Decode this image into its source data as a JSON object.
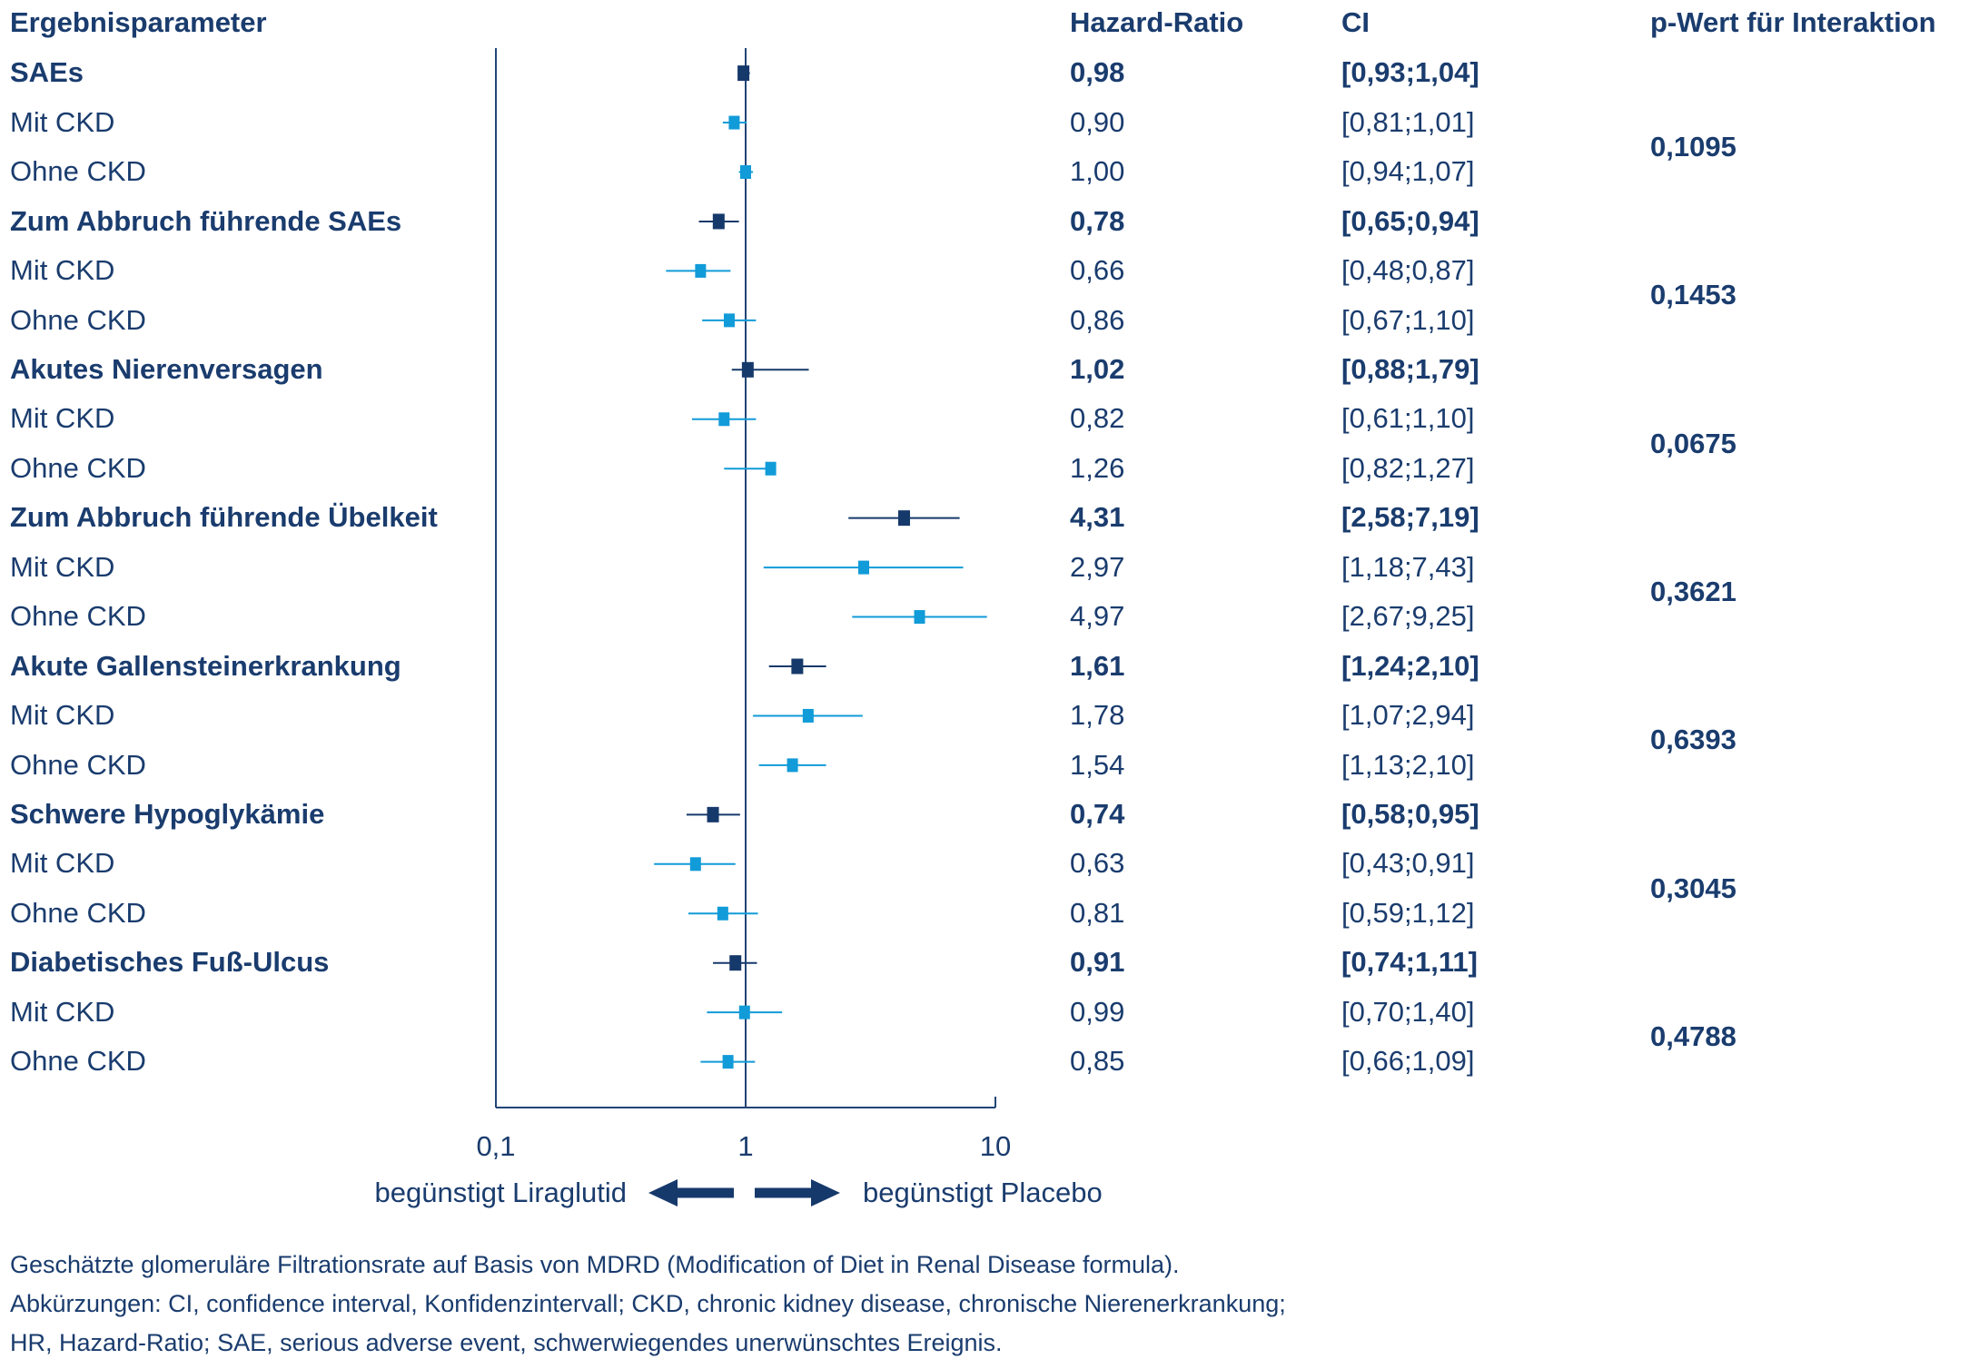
{
  "chart_data": {
    "type": "scatter",
    "x_scale": "log",
    "error_bars": true,
    "xlim": [
      0.1,
      10
    ],
    "x_ticks": [
      {
        "value": 0.1,
        "label": "0,1"
      },
      {
        "value": 1,
        "label": "1"
      },
      {
        "value": 10,
        "label": "10"
      }
    ],
    "reference_line": 1,
    "grid": false,
    "columns": {
      "parameter": "Ergebnisparameter",
      "hazard_ratio": "Hazard-Ratio",
      "ci": "CI",
      "p_interaction": "p-Wert für Interaktion"
    },
    "direction_labels": {
      "left": "begünstigt Liraglutid",
      "right": "begünstigt Placebo"
    },
    "colors": {
      "text": "#1a3c6e",
      "overall": "#16396b",
      "subgroup": "#119bd8",
      "axis": "#214575"
    },
    "groups": [
      {
        "p_interaction": "0,1095",
        "rows": [
          {
            "label": "SAEs",
            "hr": 0.98,
            "ci": [
              0.93,
              1.04
            ],
            "hr_text": "0,98",
            "ci_text": "[0,93;1,04]"
          },
          {
            "label": "Mit CKD",
            "hr": 0.9,
            "ci": [
              0.81,
              1.01
            ],
            "hr_text": "0,90",
            "ci_text": "[0,81;1,01]"
          },
          {
            "label": "Ohne CKD",
            "hr": 1.0,
            "ci": [
              0.94,
              1.07
            ],
            "hr_text": "1,00",
            "ci_text": "[0,94;1,07]"
          }
        ]
      },
      {
        "p_interaction": "0,1453",
        "rows": [
          {
            "label": "Zum Abbruch führende SAEs",
            "hr": 0.78,
            "ci": [
              0.65,
              0.94
            ],
            "hr_text": "0,78",
            "ci_text": "[0,65;0,94]"
          },
          {
            "label": "Mit CKD",
            "hr": 0.66,
            "ci": [
              0.48,
              0.87
            ],
            "hr_text": "0,66",
            "ci_text": "[0,48;0,87]"
          },
          {
            "label": "Ohne CKD",
            "hr": 0.86,
            "ci": [
              0.67,
              1.1
            ],
            "hr_text": "0,86",
            "ci_text": "[0,67;1,10]"
          }
        ]
      },
      {
        "p_interaction": "0,0675",
        "rows": [
          {
            "label": "Akutes Nierenversagen",
            "hr": 1.02,
            "ci": [
              0.88,
              1.79
            ],
            "hr_text": "1,02",
            "ci_text": "[0,88;1,79]"
          },
          {
            "label": "Mit CKD",
            "hr": 0.82,
            "ci": [
              0.61,
              1.1
            ],
            "hr_text": "0,82",
            "ci_text": "[0,61;1,10]"
          },
          {
            "label": "Ohne CKD",
            "hr": 1.26,
            "ci": [
              0.82,
              1.27
            ],
            "hr_text": "1,26",
            "ci_text": "[0,82;1,27]"
          }
        ]
      },
      {
        "p_interaction": "0,3621",
        "rows": [
          {
            "label": "Zum Abbruch führende Übelkeit",
            "hr": 4.31,
            "ci": [
              2.58,
              7.19
            ],
            "hr_text": "4,31",
            "ci_text": "[2,58;7,19]"
          },
          {
            "label": "Mit CKD",
            "hr": 2.97,
            "ci": [
              1.18,
              7.43
            ],
            "hr_text": "2,97",
            "ci_text": "[1,18;7,43]"
          },
          {
            "label": "Ohne CKD",
            "hr": 4.97,
            "ci": [
              2.67,
              9.25
            ],
            "hr_text": "4,97",
            "ci_text": "[2,67;9,25]"
          }
        ]
      },
      {
        "p_interaction": "0,6393",
        "rows": [
          {
            "label": "Akute Gallensteinerkrankung",
            "hr": 1.61,
            "ci": [
              1.24,
              2.1
            ],
            "hr_text": "1,61",
            "ci_text": "[1,24;2,10]"
          },
          {
            "label": "Mit CKD",
            "hr": 1.78,
            "ci": [
              1.07,
              2.94
            ],
            "hr_text": "1,78",
            "ci_text": "[1,07;2,94]"
          },
          {
            "label": "Ohne CKD",
            "hr": 1.54,
            "ci": [
              1.13,
              2.1
            ],
            "hr_text": "1,54",
            "ci_text": "[1,13;2,10]"
          }
        ]
      },
      {
        "p_interaction": "0,3045",
        "rows": [
          {
            "label": "Schwere Hypoglykämie",
            "hr": 0.74,
            "ci": [
              0.58,
              0.95
            ],
            "hr_text": "0,74",
            "ci_text": "[0,58;0,95]"
          },
          {
            "label": "Mit CKD",
            "hr": 0.63,
            "ci": [
              0.43,
              0.91
            ],
            "hr_text": "0,63",
            "ci_text": "[0,43;0,91]"
          },
          {
            "label": "Ohne CKD",
            "hr": 0.81,
            "ci": [
              0.59,
              1.12
            ],
            "hr_text": "0,81",
            "ci_text": "[0,59;1,12]"
          }
        ]
      },
      {
        "p_interaction": "0,4788",
        "rows": [
          {
            "label": "Diabetisches Fuß-Ulcus",
            "hr": 0.91,
            "ci": [
              0.74,
              1.11
            ],
            "hr_text": "0,91",
            "ci_text": "[0,74;1,11]"
          },
          {
            "label": "Mit CKD",
            "hr": 0.99,
            "ci": [
              0.7,
              1.4
            ],
            "hr_text": "0,99",
            "ci_text": "[0,70;1,40]"
          },
          {
            "label": "Ohne CKD",
            "hr": 0.85,
            "ci": [
              0.66,
              1.09
            ],
            "hr_text": "0,85",
            "ci_text": "[0,66;1,09]"
          }
        ]
      }
    ]
  },
  "footnotes": [
    "Geschätzte glomeruläre Filtrationsrate auf Basis von MDRD (Modification of Diet in Renal Disease formula).",
    "Abkürzungen: CI, confidence interval, Konfidenzintervall; CKD, chronic kidney disease, chronische Nierenerkrankung;",
    "HR, Hazard-Ratio; SAE, serious adverse event, schwerwiegendes unerwünschtes Ereignis."
  ]
}
